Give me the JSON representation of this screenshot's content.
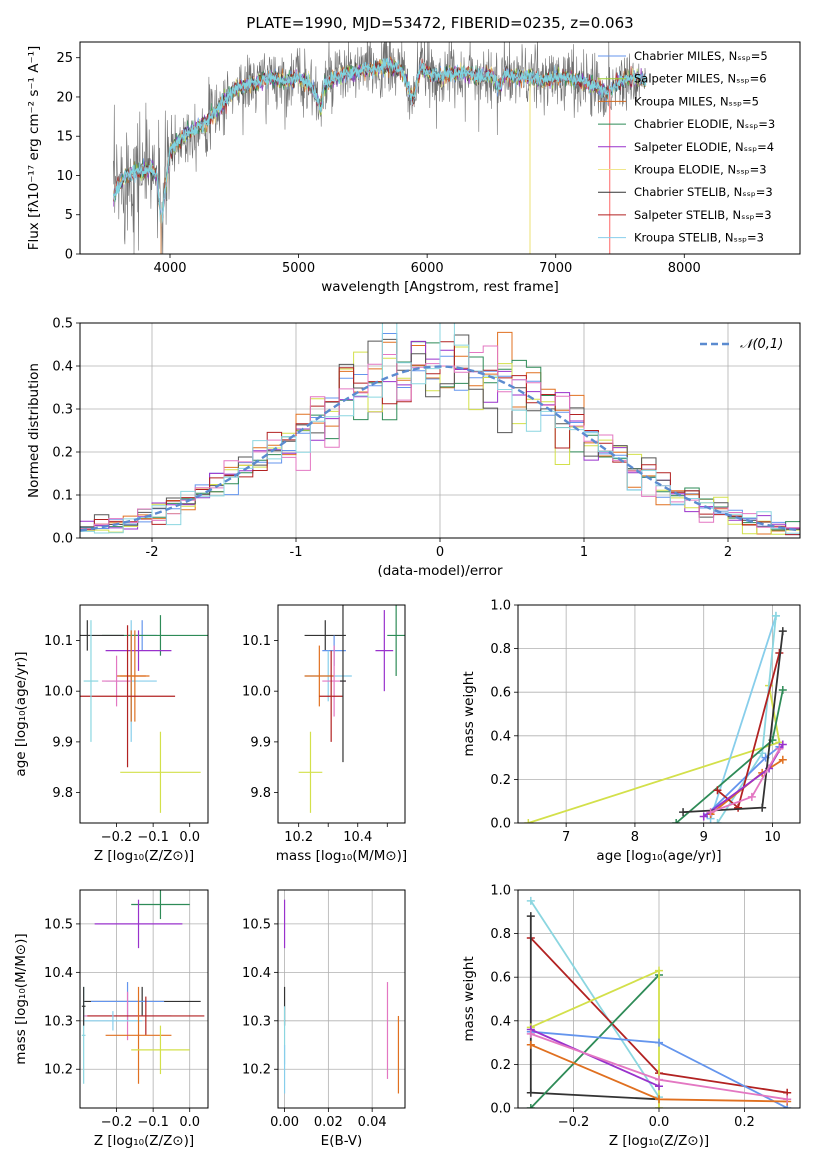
{
  "chart_data": [
    {
      "id": "spectrum",
      "type": "line",
      "title": "PLATE=1990, MJD=53472, FIBERID=0235, z=0.063",
      "xlabel": "wavelength [Angstrom, rest frame]",
      "ylabel": "Flux [fλ10⁻¹⁷ erg cm⁻² s⁻¹ A⁻¹]",
      "xlim": [
        3300,
        8900
      ],
      "ylim": [
        0,
        27
      ],
      "xticks": [
        4000,
        5000,
        6000,
        7000,
        8000
      ],
      "yticks": [
        0,
        5,
        10,
        15,
        20,
        25
      ],
      "legend_position": "top-right",
      "envelope": {
        "x": [
          3560,
          3650,
          3750,
          3850,
          3900,
          3930,
          3950,
          4000,
          4100,
          4200,
          4300,
          4400,
          4500,
          4600,
          4700,
          4800,
          4900,
          5000,
          5100,
          5175,
          5200,
          5300,
          5400,
          5500,
          5600,
          5700,
          5800,
          5890,
          5950,
          6000,
          6100,
          6200,
          6300,
          6400,
          6500,
          6563,
          6600,
          6700,
          6800,
          6900,
          7000,
          7100,
          7200,
          7300,
          7400,
          7500,
          7600,
          7700
        ],
        "y": [
          7.5,
          10.0,
          10.5,
          11.0,
          10.0,
          4.0,
          6.5,
          13.0,
          15.0,
          16.0,
          17.0,
          19.0,
          21.0,
          21.5,
          22.0,
          22.5,
          22.0,
          22.5,
          21.5,
          18.5,
          21.5,
          22.5,
          23.0,
          23.5,
          23.5,
          24.0,
          23.5,
          19.5,
          24.0,
          23.0,
          22.5,
          23.0,
          23.0,
          22.5,
          23.0,
          21.0,
          23.0,
          22.5,
          22.5,
          22.0,
          22.5,
          22.5,
          22.0,
          21.5,
          20.5,
          22.0,
          22.5,
          22.0
        ]
      },
      "noise_amplitude": 2.5,
      "series": [
        {
          "name": "Chabrier MILES, Nₛₛₚ=5",
          "color": "#6495ED"
        },
        {
          "name": "Salpeter MILES, Nₛₛₚ=6",
          "color": "#9ACD32"
        },
        {
          "name": "Kroupa MILES, Nₛₛₚ=5",
          "color": "#D2691E"
        },
        {
          "name": "Chabrier ELODIE, Nₛₛₚ=3",
          "color": "#2E8B57"
        },
        {
          "name": "Salpeter ELODIE, Nₛₛₚ=4",
          "color": "#9932CC"
        },
        {
          "name": "Kroupa ELODIE, Nₛₛₚ=3",
          "color": "#F0E68C"
        },
        {
          "name": "Chabrier STELIB, Nₛₛₚ=3",
          "color": "#333333"
        },
        {
          "name": "Salpeter STELIB, Nₛₛₚ=3",
          "color": "#B22222"
        },
        {
          "name": "Kroupa STELIB, Nₛₛₚ=3",
          "color": "#87CEEB"
        }
      ],
      "lines": [
        {
          "color": "#E0A070",
          "x": 3930,
          "from": 0,
          "to": 5
        },
        {
          "color": "#F0E68C",
          "x": 6800,
          "from": 0,
          "to": 22
        },
        {
          "color": "#FF7F7F",
          "x": 7420,
          "from": 0,
          "to": 21
        }
      ]
    },
    {
      "id": "residuals",
      "type": "step",
      "xlabel": "(data-model)/error",
      "ylabel": "Normed distribution",
      "xlim": [
        -2.5,
        2.5
      ],
      "ylim": [
        0,
        0.5
      ],
      "xticks": [
        -2,
        -1,
        0,
        1,
        2
      ],
      "yticks": [
        0.0,
        0.1,
        0.2,
        0.3,
        0.4,
        0.5
      ],
      "bin_width": 0.1,
      "legend": "𝒩(0,1)",
      "legend_position": "top-right",
      "normal_curve_color": "#5B8BD0",
      "series_colors": [
        "#6495ED",
        "#E07020",
        "#2E8B57",
        "#9932CC",
        "#D3E04A",
        "#555555",
        "#B22222",
        "#E377C2",
        "#8BD6E0"
      ]
    },
    {
      "id": "age_vs_Z",
      "type": "errorbar",
      "xlabel": "Z [log₁₀(Z/Z⊙)]",
      "ylabel": "age  [log₁₀(age/yr)]",
      "xlim": [
        -0.3,
        0.05
      ],
      "ylim": [
        9.74,
        10.17
      ],
      "xticks": [
        -0.2,
        -0.1,
        0.0
      ],
      "xticklabels": [
        "−0.2",
        "−0.1",
        "0.0"
      ],
      "yticks": [
        9.8,
        9.9,
        10.0,
        10.1
      ],
      "points": [
        {
          "x": -0.13,
          "y": 10.11,
          "xerr": 0.04,
          "yerr": 0.03,
          "color": "#6495ED"
        },
        {
          "x": -0.08,
          "y": 10.11,
          "xerr": 0.16,
          "yerr": 0.04,
          "color": "#2E8B57"
        },
        {
          "x": -0.14,
          "y": 10.08,
          "xerr": 0.09,
          "yerr": 0.04,
          "color": "#9932CC"
        },
        {
          "x": -0.28,
          "y": 10.11,
          "xerr": 0.1,
          "yerr": 0.03,
          "color": "#333333"
        },
        {
          "x": -0.16,
          "y": 10.02,
          "xerr": 0.07,
          "yerr": 0.12,
          "color": "#87CEEB"
        },
        {
          "x": -0.16,
          "y": 10.03,
          "xerr": 0.04,
          "yerr": 0.09,
          "color": "#D2691E"
        },
        {
          "x": -0.15,
          "y": 10.03,
          "xerr": 0.04,
          "yerr": 0.09,
          "color": "#E07020"
        },
        {
          "x": -0.2,
          "y": 10.02,
          "xerr": 0.04,
          "yerr": 0.05,
          "color": "#E377C2"
        },
        {
          "x": -0.17,
          "y": 9.99,
          "xerr": 0.13,
          "yerr": 0.14,
          "color": "#B22222"
        },
        {
          "x": -0.27,
          "y": 10.02,
          "xerr": 0.02,
          "yerr": 0.12,
          "color": "#8BD6E0"
        },
        {
          "x": -0.08,
          "y": 9.84,
          "xerr": 0.11,
          "yerr": 0.08,
          "color": "#D3E04A"
        }
      ]
    },
    {
      "id": "age_vs_mass",
      "type": "errorbar",
      "xlabel": "mass [log₁₀(M/M⊙)]",
      "ylabel": "",
      "xlim": [
        10.13,
        10.56
      ],
      "ylim": [
        9.74,
        10.17
      ],
      "xticks": [
        10.2,
        10.3,
        10.4,
        10.5
      ],
      "xticklabels": [
        "10.2",
        "",
        "10.4",
        ""
      ],
      "yticks": [
        9.8,
        9.9,
        10.0,
        10.1
      ],
      "points": [
        {
          "x": 10.29,
          "y": 10.11,
          "xerr": 0.07,
          "yerr": 0.03,
          "color": "#333333"
        },
        {
          "x": 10.32,
          "y": 10.08,
          "xerr": 0.04,
          "yerr": 0.03,
          "color": "#6495ED"
        },
        {
          "x": 10.53,
          "y": 10.11,
          "xerr": 0.03,
          "yerr": 0.08,
          "color": "#2E8B57"
        },
        {
          "x": 10.49,
          "y": 10.08,
          "xerr": 0.03,
          "yerr": 0.08,
          "color": "#9932CC"
        },
        {
          "x": 10.3,
          "y": 10.03,
          "xerr": 0.08,
          "yerr": 0.05,
          "color": "#87CEEB"
        },
        {
          "x": 10.27,
          "y": 10.03,
          "xerr": 0.05,
          "yerr": 0.06,
          "color": "#E07020"
        },
        {
          "x": 10.32,
          "y": 10.02,
          "xerr": 0.04,
          "yerr": 0.07,
          "color": "#E377C2"
        },
        {
          "x": 10.31,
          "y": 9.99,
          "xerr": 0.04,
          "yerr": 0.09,
          "color": "#B22222"
        },
        {
          "x": 10.35,
          "y": 10.02,
          "xerr": 0.01,
          "yerr": 0.16,
          "color": "#333333"
        },
        {
          "x": 10.24,
          "y": 9.84,
          "xerr": 0.04,
          "yerr": 0.08,
          "color": "#D3E04A"
        }
      ]
    },
    {
      "id": "mass_weight_vs_age",
      "type": "line",
      "xlabel": "age  [log₁₀(age/yr)]",
      "ylabel": "mass weight",
      "xlim": [
        6.3,
        10.4
      ],
      "ylim": [
        0.0,
        1.0
      ],
      "xticks": [
        7,
        8,
        9,
        10
      ],
      "yticks": [
        0.0,
        0.2,
        0.4,
        0.6,
        0.8,
        1.0
      ],
      "series": [
        {
          "color": "#D3E04A",
          "x": [
            6.45,
            10.1,
            9.95
          ],
          "y": [
            0.0,
            0.37,
            0.63
          ]
        },
        {
          "color": "#87CEEB",
          "x": [
            9.1,
            10.05
          ],
          "y": [
            0.02,
            0.95
          ]
        },
        {
          "color": "#8BD6E0",
          "x": [
            9.2,
            9.85,
            10.05
          ],
          "y": [
            0.0,
            0.32,
            0.95
          ]
        },
        {
          "color": "#2E8B57",
          "x": [
            8.6,
            10.0,
            10.15
          ],
          "y": [
            0.0,
            0.38,
            0.61
          ]
        },
        {
          "color": "#6495ED",
          "x": [
            9.05,
            9.9,
            10.1
          ],
          "y": [
            0.04,
            0.3,
            0.35
          ]
        },
        {
          "color": "#E07020",
          "x": [
            9.1,
            9.85,
            10.15
          ],
          "y": [
            0.04,
            0.23,
            0.29
          ]
        },
        {
          "color": "#B22222",
          "x": [
            9.2,
            9.5,
            10.1
          ],
          "y": [
            0.15,
            0.07,
            0.78
          ]
        },
        {
          "color": "#9932CC",
          "x": [
            9.0,
            9.95,
            10.15
          ],
          "y": [
            0.03,
            0.25,
            0.36
          ]
        },
        {
          "color": "#333333",
          "x": [
            8.7,
            9.85,
            10.15
          ],
          "y": [
            0.05,
            0.07,
            0.88
          ]
        },
        {
          "color": "#E377C2",
          "x": [
            9.1,
            9.7,
            10.1
          ],
          "y": [
            0.05,
            0.12,
            0.34
          ]
        }
      ]
    },
    {
      "id": "mass_vs_Z",
      "type": "errorbar",
      "xlabel": "Z [log₁₀(Z/Z⊙)]",
      "ylabel": "mass [log₁₀(M/M⊙)]",
      "xlim": [
        -0.3,
        0.05
      ],
      "ylim": [
        10.12,
        10.57
      ],
      "xticks": [
        -0.2,
        -0.1,
        0.0
      ],
      "xticklabels": [
        "−0.2",
        "−0.1",
        "0.0"
      ],
      "yticks": [
        10.2,
        10.3,
        10.4,
        10.5
      ],
      "points": [
        {
          "x": -0.08,
          "y": 10.54,
          "xerr": 0.08,
          "yerr": 0.03,
          "color": "#2E8B57"
        },
        {
          "x": -0.14,
          "y": 10.5,
          "xerr": 0.12,
          "yerr": 0.05,
          "color": "#9932CC"
        },
        {
          "x": -0.13,
          "y": 10.34,
          "xerr": 0.16,
          "yerr": 0.03,
          "color": "#333333"
        },
        {
          "x": -0.17,
          "y": 10.34,
          "xerr": 0.1,
          "yerr": 0.04,
          "color": "#6495ED"
        },
        {
          "x": -0.17,
          "y": 10.31,
          "xerr": 0.12,
          "yerr": 0.05,
          "color": "#E377C2"
        },
        {
          "x": -0.12,
          "y": 10.31,
          "xerr": 0.16,
          "yerr": 0.04,
          "color": "#B22222"
        },
        {
          "x": -0.21,
          "y": 10.3,
          "xerr": 0.08,
          "yerr": 0.02,
          "color": "#87CEEB"
        },
        {
          "x": -0.14,
          "y": 10.27,
          "xerr": 0.09,
          "yerr": 0.1,
          "color": "#E07020"
        },
        {
          "x": -0.08,
          "y": 10.24,
          "xerr": 0.08,
          "yerr": 0.05,
          "color": "#D3E04A"
        },
        {
          "x": -0.29,
          "y": 10.27,
          "xerr": 0.005,
          "yerr": 0.1,
          "color": "#8BD6E0"
        },
        {
          "x": -0.29,
          "y": 10.33,
          "xerr": 0.005,
          "yerr": 0.04,
          "color": "#333333"
        }
      ]
    },
    {
      "id": "mass_vs_EBV",
      "type": "errorbar",
      "xlabel": "E(B-V)",
      "ylabel": "",
      "xlim": [
        -0.003,
        0.055
      ],
      "ylim": [
        10.12,
        10.57
      ],
      "xticks": [
        0.0,
        0.02,
        0.04
      ],
      "xticklabels": [
        "0.00",
        "0.02",
        "0.04"
      ],
      "yticks": [
        10.2,
        10.3,
        10.4,
        10.5
      ],
      "points": [
        {
          "x": 0.0,
          "y": 10.5,
          "xerr": 0.0,
          "yerr": 0.05,
          "color": "#9932CC"
        },
        {
          "x": 0.0,
          "y": 10.33,
          "xerr": 0.0,
          "yerr": 0.04,
          "color": "#333333"
        },
        {
          "x": 0.0,
          "y": 10.27,
          "xerr": 0.0,
          "yerr": 0.06,
          "color": "#8BD6E0"
        },
        {
          "x": 0.0,
          "y": 10.2,
          "xerr": 0.0,
          "yerr": 0.05,
          "color": "#87CEEB"
        },
        {
          "x": 0.047,
          "y": 10.28,
          "xerr": 0.0,
          "yerr": 0.1,
          "color": "#E377C2"
        },
        {
          "x": 0.052,
          "y": 10.23,
          "xerr": 0.0,
          "yerr": 0.08,
          "color": "#E07020"
        }
      ]
    },
    {
      "id": "mass_weight_vs_Z",
      "type": "line",
      "xlabel": "Z [log₁₀(Z/Z⊙)]",
      "ylabel": "mass weight",
      "xlim": [
        -0.33,
        0.33
      ],
      "ylim": [
        0.0,
        1.0
      ],
      "xticks": [
        -0.2,
        0.0,
        0.2
      ],
      "xticklabels": [
        "−0.2",
        "0.0",
        "0.2"
      ],
      "yticks": [
        0.0,
        0.2,
        0.4,
        0.6,
        0.8,
        1.0
      ],
      "series": [
        {
          "color": "#8BD6E0",
          "x": [
            -0.3,
            0.0
          ],
          "y": [
            0.95,
            0.05
          ]
        },
        {
          "color": "#B22222",
          "x": [
            -0.3,
            0.0,
            0.3
          ],
          "y": [
            0.78,
            0.16,
            0.07
          ]
        },
        {
          "color": "#333333",
          "x": [
            -0.3,
            -0.3,
            0.0
          ],
          "y": [
            0.88,
            0.07,
            0.04
          ]
        },
        {
          "color": "#2E8B57",
          "x": [
            -0.3,
            0.0
          ],
          "y": [
            0.0,
            0.61
          ]
        },
        {
          "color": "#D3E04A",
          "x": [
            -0.3,
            0.0,
            0.0
          ],
          "y": [
            0.37,
            0.63,
            0.0
          ]
        },
        {
          "color": "#6495ED",
          "x": [
            -0.3,
            0.0,
            0.3
          ],
          "y": [
            0.35,
            0.3,
            0.0
          ]
        },
        {
          "color": "#E07020",
          "x": [
            -0.3,
            0.0,
            0.3
          ],
          "y": [
            0.29,
            0.04,
            0.03
          ]
        },
        {
          "color": "#9932CC",
          "x": [
            -0.3,
            0.0
          ],
          "y": [
            0.36,
            0.1
          ]
        },
        {
          "color": "#E377C2",
          "x": [
            -0.3,
            0.0,
            0.3
          ],
          "y": [
            0.34,
            0.13,
            0.04
          ]
        }
      ]
    }
  ]
}
